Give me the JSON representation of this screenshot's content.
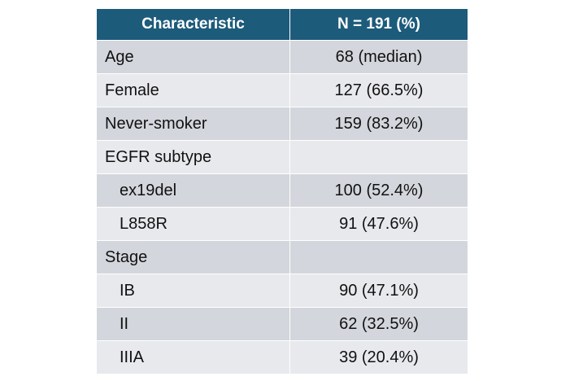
{
  "table": {
    "header": [
      "Characteristic",
      "N = 191 (%)"
    ],
    "rows": [
      {
        "label": "Age",
        "value": "68 (median)"
      },
      {
        "label": "Female",
        "value": "127 (66.5%)"
      },
      {
        "label": "Never-smoker",
        "value": "159 (83.2%)"
      },
      {
        "label": "EGFR subtype",
        "children": [
          {
            "label": "ex19del",
            "value": "100 (52.4%)"
          },
          {
            "label": "L858R",
            "value": "91 (47.6%)"
          }
        ]
      },
      {
        "label": "Stage",
        "children": [
          {
            "label": "IB",
            "value": "90 (47.1%)"
          },
          {
            "label": "II",
            "value": "62 (32.5%)"
          },
          {
            "label": "IIIA",
            "value": "39 (20.4%)"
          }
        ]
      }
    ]
  }
}
